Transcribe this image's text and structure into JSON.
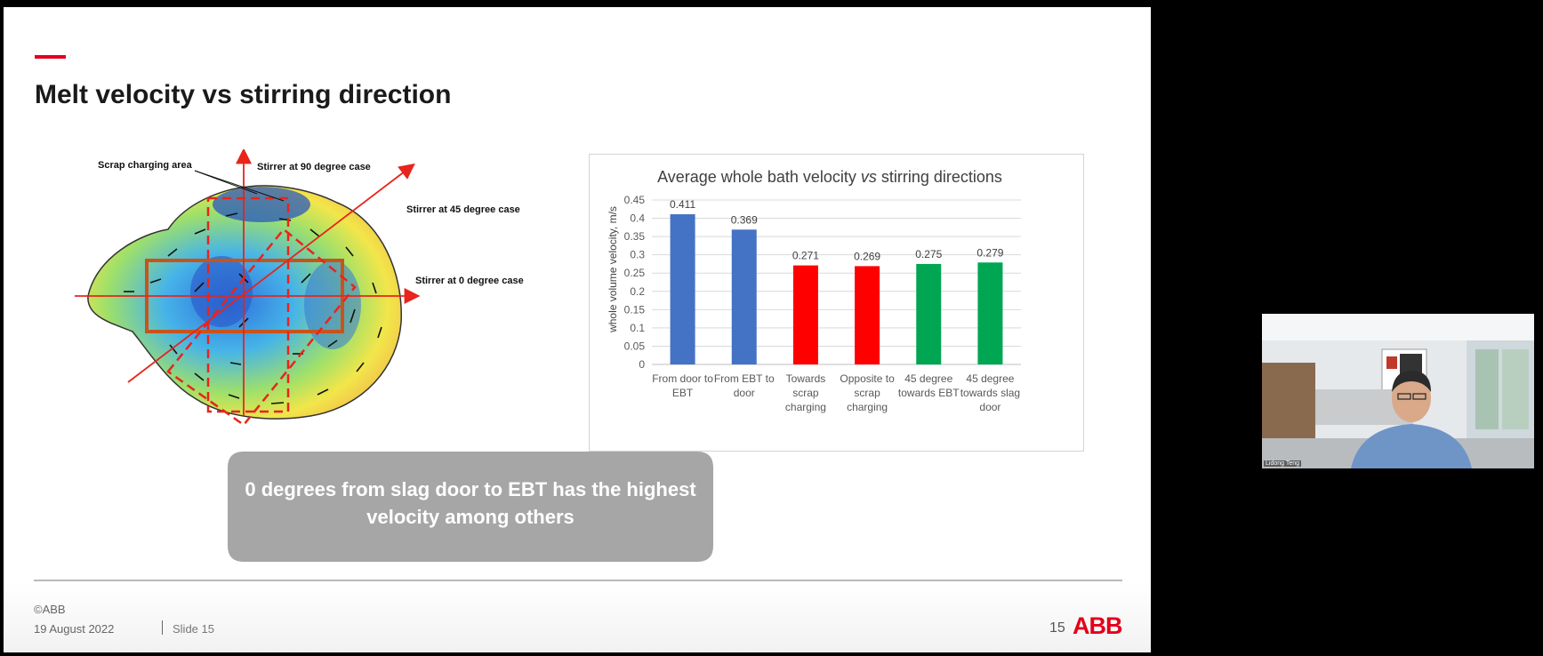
{
  "slide": {
    "title": "Melt velocity vs stirring direction",
    "diagram_labels": {
      "scrap": "Scrap charging area",
      "deg90": "Stirrer at 90 degree case",
      "deg45": "Stirrer at 45 degree case",
      "deg0": "Stirrer at 0 degree case"
    },
    "callout": "0 degrees from slag door to EBT has the highest velocity among others",
    "footer": {
      "copyright": "©ABB",
      "date": "19 August 2022",
      "slide_label": "Slide 15",
      "page_number": "15",
      "logo_text": "ABB"
    }
  },
  "chart_data": {
    "type": "bar",
    "title_parts": [
      "Average whole bath velocity ",
      "vs",
      " stirring directions"
    ],
    "ylabel": "whole volume velocity, m/s",
    "ylim": [
      0,
      0.45
    ],
    "yticks": [
      "0",
      "0.05",
      "0.1",
      "0.15",
      "0.2",
      "0.25",
      "0.3",
      "0.35",
      "0.4",
      "0.45"
    ],
    "categories": [
      [
        "From door to",
        "EBT"
      ],
      [
        "From EBT to",
        "door"
      ],
      [
        "Towards",
        "scrap",
        "charging"
      ],
      [
        "Opposite to",
        "scrap",
        "charging"
      ],
      [
        "45 degree",
        "towards EBT"
      ],
      [
        "45 degree",
        "towards slag",
        "door"
      ]
    ],
    "values": [
      0.411,
      0.369,
      0.271,
      0.269,
      0.275,
      0.279
    ],
    "value_labels": [
      "0.411",
      "0.369",
      "0.271",
      "0.269",
      "0.275",
      "0.279"
    ],
    "colors": [
      "#4472c4",
      "#4472c4",
      "#ff0000",
      "#ff0000",
      "#00a651",
      "#00a651"
    ],
    "grid": true
  },
  "video": {
    "participant_name": "Lidong Teng"
  },
  "colors": {
    "accent": "#e2001a",
    "callout": "#a6a6a6"
  }
}
